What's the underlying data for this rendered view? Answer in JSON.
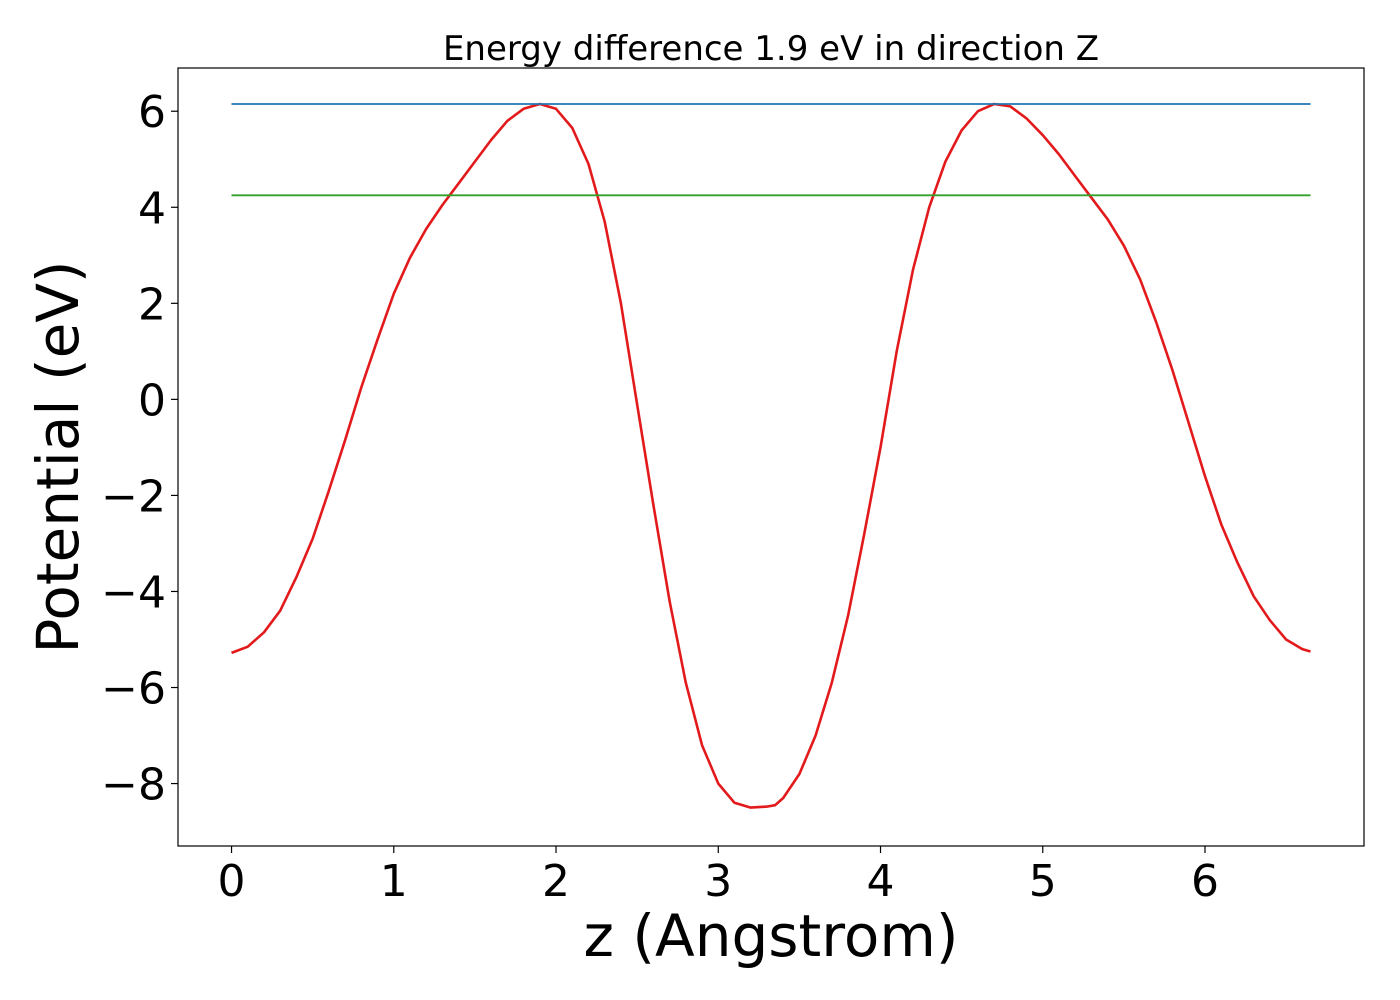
{
  "chart_data": {
    "type": "line",
    "title": "Energy difference 1.9 eV in direction Z",
    "xlabel": "z (Angstrom)",
    "ylabel": "Potential (eV)",
    "xlim": [
      -0.33,
      6.98
    ],
    "ylim": [
      -9.3,
      6.9
    ],
    "xticks": [
      0,
      1,
      2,
      3,
      4,
      5,
      6
    ],
    "yticks": [
      -8,
      -6,
      -4,
      -2,
      0,
      2,
      4,
      6
    ],
    "xtick_labels": [
      "0",
      "1",
      "2",
      "3",
      "4",
      "5",
      "6"
    ],
    "ytick_labels": [
      "−8",
      "−6",
      "−4",
      "−2",
      "0",
      "2",
      "4",
      "6"
    ],
    "grid": false,
    "legend": "none",
    "series": [
      {
        "color": "#e31a1c",
        "x": [
          0.0,
          0.1,
          0.2,
          0.3,
          0.4,
          0.5,
          0.6,
          0.7,
          0.8,
          0.9,
          1.0,
          1.1,
          1.2,
          1.3,
          1.4,
          1.5,
          1.6,
          1.7,
          1.8,
          1.9,
          2.0,
          2.1,
          2.2,
          2.3,
          2.4,
          2.5,
          2.6,
          2.7,
          2.8,
          2.9,
          3.0,
          3.1,
          3.2,
          3.3,
          3.35,
          3.4,
          3.5,
          3.6,
          3.7,
          3.8,
          3.9,
          4.0,
          4.1,
          4.2,
          4.3,
          4.4,
          4.5,
          4.6,
          4.7,
          4.8,
          4.9,
          5.0,
          5.1,
          5.2,
          5.3,
          5.4,
          5.5,
          5.6,
          5.7,
          5.8,
          5.9,
          6.0,
          6.1,
          6.2,
          6.3,
          6.4,
          6.5,
          6.6,
          6.65
        ],
        "y": [
          -5.28,
          -5.15,
          -4.85,
          -4.4,
          -3.7,
          -2.9,
          -1.9,
          -0.85,
          0.25,
          1.25,
          2.2,
          2.95,
          3.55,
          4.05,
          4.5,
          4.95,
          5.4,
          5.8,
          6.05,
          6.15,
          6.05,
          5.65,
          4.9,
          3.7,
          2.0,
          -0.1,
          -2.2,
          -4.2,
          -5.9,
          -7.2,
          -8.0,
          -8.4,
          -8.5,
          -8.48,
          -8.45,
          -8.3,
          -7.8,
          -7.0,
          -5.9,
          -4.5,
          -2.8,
          -1.0,
          1.0,
          2.7,
          4.0,
          4.95,
          5.6,
          6.0,
          6.15,
          6.1,
          5.85,
          5.5,
          5.1,
          4.65,
          4.2,
          3.75,
          3.2,
          2.5,
          1.6,
          0.6,
          -0.5,
          -1.6,
          -2.6,
          -3.4,
          -4.1,
          -4.6,
          -5.0,
          -5.2,
          -5.25
        ]
      },
      {
        "color": "#1f77b4",
        "x": [
          0.0,
          6.65
        ],
        "y": [
          6.15,
          6.15
        ]
      },
      {
        "color": "#33a02c",
        "x": [
          0.0,
          6.65
        ],
        "y": [
          4.25,
          4.25
        ]
      }
    ]
  }
}
